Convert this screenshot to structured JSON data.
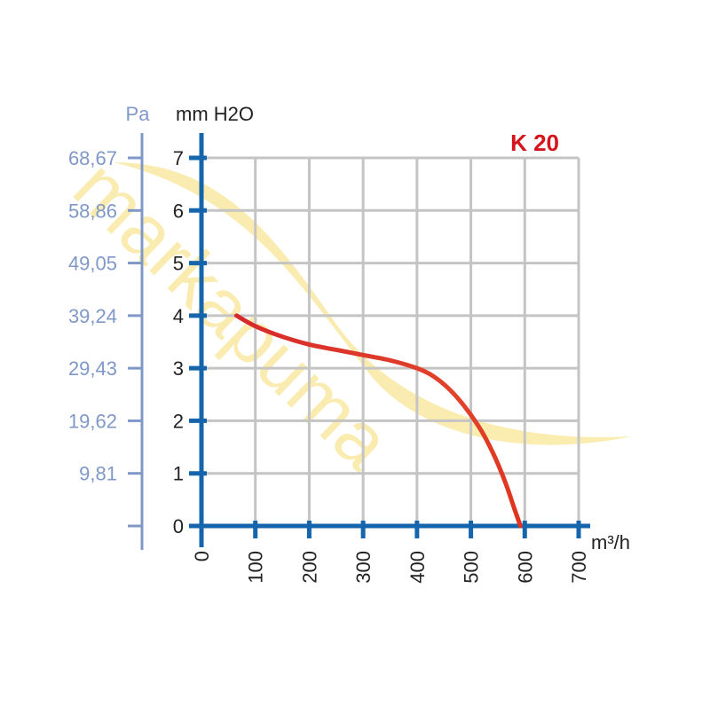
{
  "chart_data": {
    "type": "line",
    "title": "K 20",
    "xlabel": "m³/h",
    "ylabel": "mm H2O",
    "ylabel_secondary": "Pa",
    "xlim": [
      0,
      700
    ],
    "ylim": [
      0,
      7
    ],
    "grid": true,
    "x_ticks": [
      "0",
      "100",
      "200",
      "300",
      "400",
      "500",
      "600",
      "700"
    ],
    "y_ticks": [
      "0",
      "1",
      "2",
      "3",
      "4",
      "5",
      "6",
      "7"
    ],
    "y2_ticks": [
      "9,81",
      "19,62",
      "29,43",
      "39,24",
      "49,05",
      "58,86",
      "68,67"
    ],
    "series": [
      {
        "x": [
          65,
          100,
          150,
          200,
          250,
          300,
          350,
          400,
          430,
          460,
          490,
          520,
          545,
          565,
          580,
          592
        ],
        "y": [
          4.0,
          3.8,
          3.6,
          3.45,
          3.35,
          3.25,
          3.15,
          3.0,
          2.85,
          2.6,
          2.25,
          1.8,
          1.3,
          0.8,
          0.35,
          0.0
        ]
      }
    ],
    "watermark": "markapuma",
    "colors": {
      "axis": "#1565ad",
      "secondary_axis": "#7f98c8",
      "grid": "#c4c4c4",
      "curve_start": "#d7282b",
      "curve_end": "#e24f1f",
      "title": "#d4151d",
      "watermark": "#f8e07c"
    }
  }
}
